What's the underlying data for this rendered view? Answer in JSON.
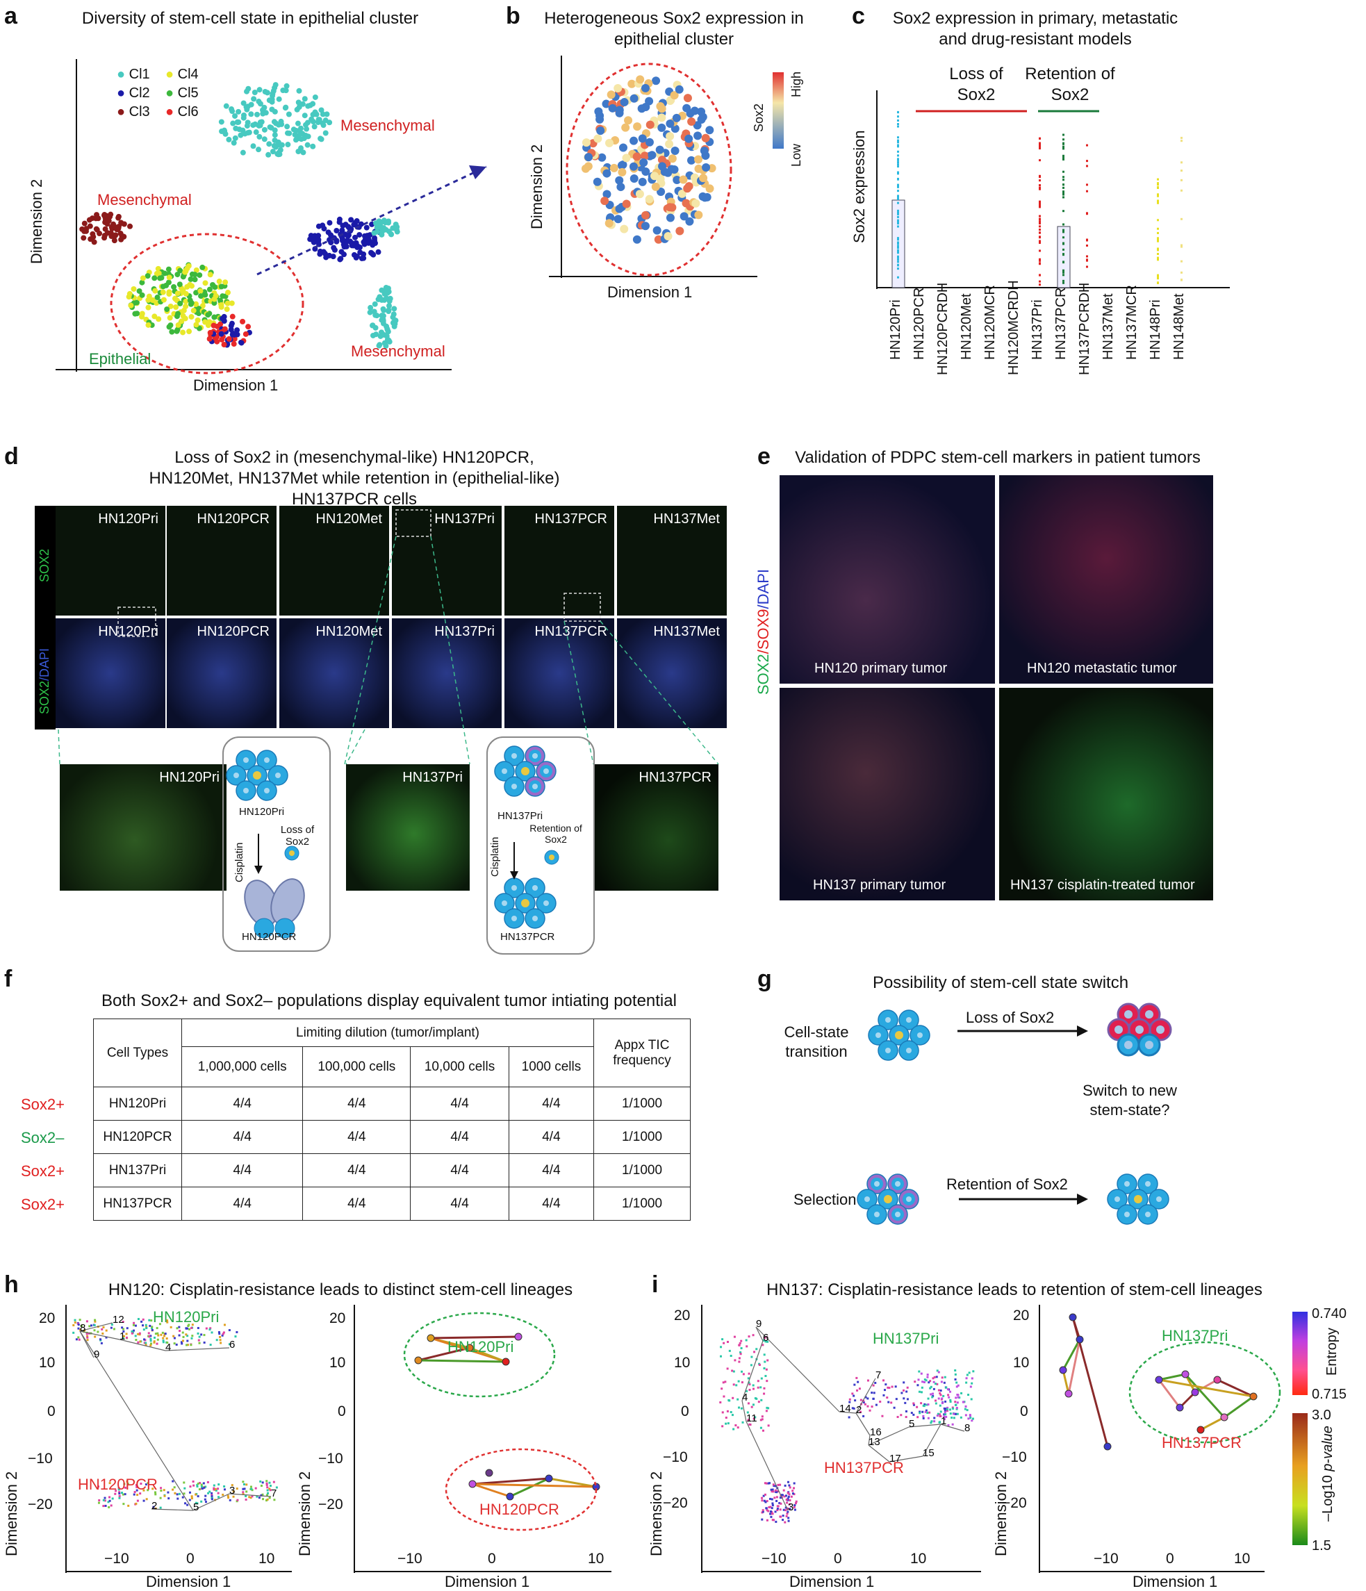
{
  "panel_a": {
    "label": "a",
    "title": "Diversity of stem-cell state in epithelial cluster",
    "xlabel": "Dimension 1",
    "ylabel": "Dimension 2",
    "legend": [
      {
        "name": "Cl1",
        "color": "#47c9c0"
      },
      {
        "name": "Cl4",
        "color": "#e8e82a"
      },
      {
        "name": "Cl2",
        "color": "#1a1aa8"
      },
      {
        "name": "Cl5",
        "color": "#3cb83c"
      },
      {
        "name": "Cl3",
        "color": "#8b1a1a"
      },
      {
        "name": "Cl6",
        "color": "#e82828"
      }
    ],
    "annotations": [
      "Mesenchymal",
      "Mesenchymal",
      "Mesenchymal",
      "Epithelial"
    ]
  },
  "panel_b": {
    "label": "b",
    "title": "Heterogeneous Sox2 expression in epithelial cluster",
    "xlabel": "Dimension 1",
    "ylabel": "Dimension 2",
    "colorbar_title": "Sox2",
    "colorbar_high": "High",
    "colorbar_low": "Low"
  },
  "panel_c": {
    "label": "c",
    "title": "Sox2 expression in primary, metastatic and drug-resistant models",
    "ylabel": "Sox2 expression",
    "group_loss": "Loss of Sox2",
    "group_retention": "Retention of Sox2",
    "chart_data": {
      "type": "scatter",
      "categories": [
        "HN120Pri",
        "HN120PCR",
        "HN120PCRDH",
        "HN120Met",
        "HN120MCR",
        "HN120MCRDH",
        "HN137Pri",
        "HN137PCR",
        "HN137PCRDH",
        "HN137Met",
        "HN137MCR",
        "HN148Pri",
        "HN148Met"
      ]
    }
  },
  "panel_d": {
    "label": "d",
    "title": "Loss of Sox2 in (mesenchymal-like) HN120PCR, HN120Met, HN137Met while retention in (epithelial-like) HN137PCR cells",
    "row_label_top": "SOX2",
    "row_label_bottom_green": "SOX2",
    "row_label_bottom_blue": "/DAPI",
    "tiles": [
      "HN120Pri",
      "HN120PCR",
      "HN120Met",
      "HN137Pri",
      "HN137PCR",
      "HN137Met"
    ],
    "zooms": [
      "HN120Pri",
      "HN137Pri",
      "HN137PCR"
    ],
    "scheme1": {
      "top": "HN120Pri",
      "drug": "Cisplatin",
      "event": "Loss of Sox2",
      "bottom": "HN120PCR"
    },
    "scheme2": {
      "top": "HN137Pri",
      "drug": "Cisplatin",
      "event": "Retention of Sox2",
      "bottom": "HN137PCR"
    }
  },
  "panel_e": {
    "label": "e",
    "title": "Validation of PDPC stem-cell markers in patient tumors",
    "side_label_1": "SOX2",
    "side_label_2": "/SOX9",
    "side_label_3": "/DAPI",
    "images": [
      "HN120 primary tumor",
      "HN120 metastatic tumor",
      "HN137 primary tumor",
      "HN137 cisplatin-treated tumor"
    ]
  },
  "panel_f": {
    "label": "f",
    "title": "Both Sox2+ and Sox2– populations display equivalent tumor intiating potential",
    "header_celltypes": "Cell Types",
    "header_dilution": "Limiting dilution (tumor/implant)",
    "header_tic": "Appx TIC frequency",
    "dilutions": [
      "1,000,000 cells",
      "100,000 cells",
      "10,000 cells",
      "1000 cells"
    ],
    "rows": [
      {
        "status": "Sox2+",
        "status_color": "#e02020",
        "cell": "HN120Pri",
        "vals": [
          "4/4",
          "4/4",
          "4/4",
          "4/4"
        ],
        "tic": "1/1000"
      },
      {
        "status": "Sox2–",
        "status_color": "#1a9a4a",
        "cell": "HN120PCR",
        "vals": [
          "4/4",
          "4/4",
          "4/4",
          "4/4"
        ],
        "tic": "1/1000"
      },
      {
        "status": "Sox2+",
        "status_color": "#e02020",
        "cell": "HN137Pri",
        "vals": [
          "4/4",
          "4/4",
          "4/4",
          "4/4"
        ],
        "tic": "1/1000"
      },
      {
        "status": "Sox2+",
        "status_color": "#e02020",
        "cell": "HN137PCR",
        "vals": [
          "4/4",
          "4/4",
          "4/4",
          "4/4"
        ],
        "tic": "1/1000"
      }
    ]
  },
  "panel_g": {
    "label": "g",
    "title": "Possibility of stem-cell state switch",
    "transition_label": "Cell-state transition",
    "loss": "Loss of Sox2",
    "switch_q": "Switch to new stem-state?",
    "selection_label": "Selection",
    "retention": "Retention of Sox2"
  },
  "panel_h": {
    "label": "h",
    "title": "HN120: Cisplatin-resistance leads to distinct stem-cell lineages",
    "xlabel": "Dimension 1",
    "ylabel": "Dimension 2",
    "group_pri": "HN120Pri",
    "group_pcr": "HN120PCR",
    "yticks": [
      "20",
      "10",
      "0",
      "−10",
      "−20"
    ],
    "xticks": [
      "−10",
      "0",
      "10"
    ],
    "nodes": [
      "12",
      "8",
      "1",
      "9",
      "4",
      "6",
      "3",
      "7",
      "2",
      "5"
    ]
  },
  "panel_i": {
    "label": "i",
    "title": "HN137: Cisplatin-resistance leads to retention of stem-cell lineages",
    "xlabel": "Dimension 1",
    "ylabel": "Dimension 2",
    "group_pri": "HN137Pri",
    "group_pcr": "HN137PCR",
    "yticks_left": [
      "20",
      "10",
      "0",
      "−10",
      "−20"
    ],
    "yticks_right": [
      "20",
      "10",
      "0",
      "−10",
      "−20"
    ],
    "xticks": [
      "−10",
      "0",
      "10"
    ],
    "nodes": [
      "9",
      "6",
      "4",
      "11",
      "3",
      "7",
      "14",
      "2",
      "16",
      "13",
      "5",
      "1",
      "8",
      "17",
      "15"
    ],
    "entropy_label": "Entropy",
    "entropy_high": "0.740",
    "entropy_low": "0.715",
    "pval_label_1": "–Log10",
    "pval_label_2": "p-value",
    "pval_high": "3.0",
    "pval_low": "1.5"
  }
}
